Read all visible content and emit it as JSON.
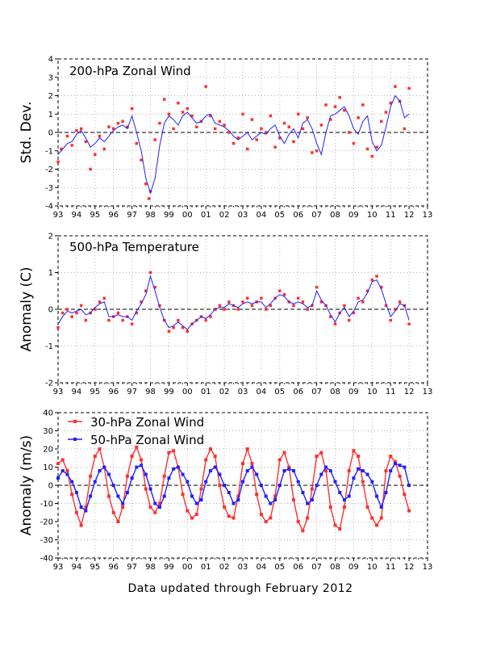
{
  "footer": "Data updated through February 2012",
  "x_tick_labels": [
    "93",
    "94",
    "95",
    "96",
    "97",
    "98",
    "99",
    "00",
    "01",
    "02",
    "03",
    "04",
    "05",
    "06",
    "07",
    "08",
    "09",
    "10",
    "11",
    "12",
    "13"
  ],
  "colors": {
    "obs": "#ff3030",
    "smooth": "#2020ff",
    "axis": "#000000"
  },
  "chart_data": [
    {
      "type": "scatter",
      "title": "200-hPa Zonal Wind",
      "ylabel": "Std. Dev.",
      "xlim": [
        1993,
        2013
      ],
      "ylim": [
        -4,
        4
      ],
      "yticks": [
        -4,
        -3,
        -2,
        -1,
        0,
        1,
        2,
        3,
        4
      ],
      "grid": true,
      "series": [
        {
          "role": "monthly points (red squares)",
          "color": "#ff3030",
          "x": [
            1993.0,
            1993.17,
            1993.5,
            1993.75,
            1994.0,
            1994.25,
            1994.5,
            1994.75,
            1995.0,
            1995.25,
            1995.5,
            1995.75,
            1996.0,
            1996.25,
            1996.5,
            1996.75,
            1997.0,
            1997.25,
            1997.5,
            1997.75,
            1997.92,
            1998.0,
            1998.25,
            1998.5,
            1998.75,
            1999.0,
            1999.25,
            1999.5,
            1999.75,
            2000.0,
            2000.25,
            2000.5,
            2000.75,
            2001.0,
            2001.25,
            2001.5,
            2001.75,
            2002.0,
            2002.25,
            2002.5,
            2002.75,
            2003.0,
            2003.25,
            2003.5,
            2003.75,
            2004.0,
            2004.25,
            2004.5,
            2004.75,
            2005.0,
            2005.25,
            2005.5,
            2005.75,
            2006.0,
            2006.25,
            2006.5,
            2006.75,
            2007.0,
            2007.25,
            2007.5,
            2007.75,
            2008.0,
            2008.25,
            2008.5,
            2008.75,
            2009.0,
            2009.25,
            2009.5,
            2009.75,
            2010.0,
            2010.25,
            2010.5,
            2010.75,
            2011.0,
            2011.25,
            2011.5,
            2011.75,
            2012.0
          ],
          "y": [
            -1.6,
            -0.9,
            -0.2,
            -0.7,
            0.1,
            0.2,
            -0.5,
            -2.0,
            -1.2,
            -0.2,
            -0.9,
            0.3,
            0.2,
            0.5,
            0.6,
            0.3,
            1.3,
            -0.6,
            -1.5,
            -2.8,
            -3.6,
            -3.2,
            -0.4,
            0.5,
            1.8,
            1.0,
            0.2,
            1.6,
            1.1,
            1.3,
            0.9,
            0.3,
            0.6,
            2.5,
            0.9,
            0.2,
            0.6,
            0.4,
            0.0,
            -0.6,
            -0.3,
            1.0,
            -0.9,
            0.7,
            -0.4,
            0.2,
            0.0,
            0.9,
            -0.8,
            -0.3,
            0.5,
            0.3,
            -0.5,
            1.0,
            0.2,
            0.8,
            -1.1,
            -1.0,
            0.4,
            1.5,
            0.7,
            1.4,
            1.9,
            1.2,
            0.0,
            -0.6,
            0.8,
            1.5,
            -0.9,
            -1.3,
            -0.8,
            0.6,
            1.1,
            1.6,
            2.5,
            1.7,
            0.2,
            2.4
          ]
        },
        {
          "role": "smoothed (blue line)",
          "color": "#2020ff",
          "x": [
            1993.0,
            1993.25,
            1993.5,
            1993.75,
            1994.0,
            1994.25,
            1994.5,
            1994.75,
            1995.0,
            1995.25,
            1995.5,
            1995.75,
            1996.0,
            1996.25,
            1996.5,
            1996.75,
            1997.0,
            1997.25,
            1997.5,
            1997.75,
            1998.0,
            1998.25,
            1998.5,
            1998.75,
            1999.0,
            1999.25,
            1999.5,
            1999.75,
            2000.0,
            2000.25,
            2000.5,
            2000.75,
            2001.0,
            2001.25,
            2001.5,
            2001.75,
            2002.0,
            2002.25,
            2002.5,
            2002.75,
            2003.0,
            2003.25,
            2003.5,
            2003.75,
            2004.0,
            2004.25,
            2004.5,
            2004.75,
            2005.0,
            2005.25,
            2005.5,
            2005.75,
            2006.0,
            2006.25,
            2006.5,
            2006.75,
            2007.0,
            2007.25,
            2007.5,
            2007.75,
            2008.0,
            2008.25,
            2008.5,
            2008.75,
            2009.0,
            2009.25,
            2009.5,
            2009.75,
            2010.0,
            2010.25,
            2010.5,
            2010.75,
            2011.0,
            2011.25,
            2011.5,
            2011.75,
            2012.0
          ],
          "y": [
            -1.2,
            -0.9,
            -0.6,
            -0.5,
            -0.1,
            0.1,
            -0.3,
            -0.8,
            -0.6,
            -0.3,
            -0.5,
            -0.2,
            0.1,
            0.3,
            0.4,
            0.2,
            0.9,
            0.0,
            -1.0,
            -2.5,
            -3.3,
            -2.5,
            -0.7,
            0.5,
            0.9,
            0.7,
            0.4,
            0.9,
            1.1,
            0.8,
            0.5,
            0.6,
            0.9,
            1.0,
            0.5,
            0.4,
            0.3,
            0.1,
            -0.2,
            -0.4,
            -0.2,
            0.0,
            -0.4,
            -0.2,
            0.0,
            -0.1,
            0.2,
            0.4,
            -0.2,
            -0.6,
            -0.1,
            0.2,
            -0.3,
            0.5,
            0.7,
            0.2,
            -0.6,
            -1.2,
            0.0,
            0.9,
            1.0,
            1.2,
            1.4,
            0.9,
            0.2,
            -0.1,
            0.6,
            0.9,
            -0.5,
            -1.0,
            -0.7,
            0.3,
            1.4,
            2.0,
            1.7,
            0.8,
            1.0
          ]
        }
      ]
    },
    {
      "type": "scatter",
      "title": "500-hPa Temperature",
      "ylabel": "Anomaly (C)",
      "xlim": [
        1993,
        2013
      ],
      "ylim": [
        -2,
        2
      ],
      "yticks": [
        -2,
        -1,
        0,
        1,
        2
      ],
      "grid": true,
      "series": [
        {
          "role": "monthly points (red squares)",
          "color": "#ff3030",
          "x": [
            1993.0,
            1993.25,
            1993.5,
            1993.75,
            1994.0,
            1994.25,
            1994.5,
            1994.75,
            1995.0,
            1995.25,
            1995.5,
            1995.75,
            1996.0,
            1996.25,
            1996.5,
            1996.75,
            1997.0,
            1997.25,
            1997.5,
            1997.75,
            1998.0,
            1998.25,
            1998.5,
            1998.75,
            1999.0,
            1999.25,
            1999.5,
            1999.75,
            2000.0,
            2000.25,
            2000.5,
            2000.75,
            2001.0,
            2001.25,
            2001.5,
            2001.75,
            2002.0,
            2002.25,
            2002.5,
            2002.75,
            2003.0,
            2003.25,
            2003.5,
            2003.75,
            2004.0,
            2004.25,
            2004.5,
            2004.75,
            2005.0,
            2005.25,
            2005.5,
            2005.75,
            2006.0,
            2006.25,
            2006.5,
            2006.75,
            2007.0,
            2007.25,
            2007.5,
            2007.75,
            2008.0,
            2008.25,
            2008.5,
            2008.75,
            2009.0,
            2009.25,
            2009.5,
            2009.75,
            2010.0,
            2010.25,
            2010.5,
            2010.75,
            2011.0,
            2011.25,
            2011.5,
            2011.75,
            2012.0
          ],
          "y": [
            -0.5,
            -0.1,
            0.0,
            -0.2,
            -0.1,
            0.1,
            -0.3,
            -0.1,
            0.0,
            0.2,
            0.3,
            -0.3,
            -0.2,
            -0.1,
            -0.3,
            -0.2,
            -0.4,
            -0.1,
            0.2,
            0.5,
            1.0,
            0.6,
            0.1,
            -0.3,
            -0.6,
            -0.5,
            -0.3,
            -0.5,
            -0.6,
            -0.4,
            -0.3,
            -0.2,
            -0.3,
            -0.2,
            0.0,
            0.1,
            0.0,
            0.2,
            0.1,
            0.0,
            0.2,
            0.3,
            0.1,
            0.2,
            0.3,
            0.0,
            0.1,
            0.3,
            0.5,
            0.4,
            0.2,
            0.1,
            0.3,
            0.2,
            0.0,
            0.1,
            0.6,
            0.2,
            0.1,
            -0.2,
            -0.4,
            -0.1,
            0.1,
            -0.3,
            -0.1,
            0.3,
            0.2,
            0.5,
            0.8,
            0.9,
            0.6,
            0.1,
            -0.3,
            0.0,
            0.2,
            0.1,
            -0.4
          ]
        },
        {
          "role": "smoothed (blue line)",
          "color": "#2020ff",
          "x": [
            1993.0,
            1993.25,
            1993.5,
            1993.75,
            1994.0,
            1994.25,
            1994.5,
            1994.75,
            1995.0,
            1995.25,
            1995.5,
            1995.75,
            1996.0,
            1996.25,
            1996.5,
            1996.75,
            1997.0,
            1997.25,
            1997.5,
            1997.75,
            1998.0,
            1998.25,
            1998.5,
            1998.75,
            1999.0,
            1999.25,
            1999.5,
            1999.75,
            2000.0,
            2000.25,
            2000.5,
            2000.75,
            2001.0,
            2001.25,
            2001.5,
            2001.75,
            2002.0,
            2002.25,
            2002.5,
            2002.75,
            2003.0,
            2003.25,
            2003.5,
            2003.75,
            2004.0,
            2004.25,
            2004.5,
            2004.75,
            2005.0,
            2005.25,
            2005.5,
            2005.75,
            2006.0,
            2006.25,
            2006.5,
            2006.75,
            2007.0,
            2007.25,
            2007.5,
            2007.75,
            2008.0,
            2008.25,
            2008.5,
            2008.75,
            2009.0,
            2009.25,
            2009.5,
            2009.75,
            2010.0,
            2010.25,
            2010.5,
            2010.75,
            2011.0,
            2011.25,
            2011.5,
            2011.75,
            2012.0
          ],
          "y": [
            -0.4,
            -0.2,
            -0.05,
            -0.1,
            -0.05,
            0.0,
            -0.15,
            -0.1,
            0.05,
            0.15,
            0.2,
            -0.2,
            -0.2,
            -0.15,
            -0.2,
            -0.2,
            -0.3,
            -0.05,
            0.15,
            0.4,
            0.9,
            0.5,
            0.05,
            -0.3,
            -0.5,
            -0.45,
            -0.35,
            -0.45,
            -0.55,
            -0.4,
            -0.3,
            -0.2,
            -0.25,
            -0.15,
            0.0,
            0.05,
            0.05,
            0.15,
            0.1,
            0.05,
            0.15,
            0.2,
            0.15,
            0.2,
            0.2,
            0.05,
            0.15,
            0.3,
            0.4,
            0.35,
            0.2,
            0.15,
            0.2,
            0.15,
            0.05,
            0.1,
            0.5,
            0.25,
            0.1,
            -0.15,
            -0.35,
            -0.1,
            0.05,
            -0.2,
            -0.05,
            0.2,
            0.25,
            0.45,
            0.75,
            0.8,
            0.55,
            0.15,
            -0.2,
            -0.05,
            0.15,
            0.1,
            -0.3
          ]
        }
      ]
    },
    {
      "type": "line",
      "ylabel": "Anomaly (m/s)",
      "xlim": [
        1993,
        2013
      ],
      "ylim": [
        -40,
        40
      ],
      "yticks": [
        -40,
        -30,
        -20,
        -10,
        0,
        10,
        20,
        30,
        40
      ],
      "grid": true,
      "legend": "top-left",
      "series": [
        {
          "name": "30-hPa Zonal Wind",
          "color": "#ff3030",
          "x": [
            1993.0,
            1993.25,
            1993.5,
            1993.75,
            1994.0,
            1994.25,
            1994.5,
            1994.75,
            1995.0,
            1995.25,
            1995.5,
            1995.75,
            1996.0,
            1996.25,
            1996.5,
            1996.75,
            1997.0,
            1997.25,
            1997.5,
            1997.75,
            1998.0,
            1998.25,
            1998.5,
            1998.75,
            1999.0,
            1999.25,
            1999.5,
            1999.75,
            2000.0,
            2000.25,
            2000.5,
            2000.75,
            2001.0,
            2001.25,
            2001.5,
            2001.75,
            2002.0,
            2002.25,
            2002.5,
            2002.75,
            2003.0,
            2003.25,
            2003.5,
            2003.75,
            2004.0,
            2004.25,
            2004.5,
            2004.75,
            2005.0,
            2005.25,
            2005.5,
            2005.75,
            2006.0,
            2006.25,
            2006.5,
            2006.75,
            2007.0,
            2007.25,
            2007.5,
            2007.75,
            2008.0,
            2008.25,
            2008.5,
            2008.75,
            2009.0,
            2009.25,
            2009.5,
            2009.75,
            2010.0,
            2010.25,
            2010.5,
            2010.75,
            2011.0,
            2011.25,
            2011.5,
            2011.75,
            2012.0
          ],
          "y": [
            12,
            14,
            8,
            -5,
            -15,
            -22,
            -12,
            5,
            16,
            20,
            10,
            -6,
            -15,
            -20,
            -12,
            5,
            16,
            21,
            14,
            -2,
            -12,
            -15,
            -10,
            5,
            18,
            19,
            10,
            -5,
            -14,
            -18,
            -16,
            -2,
            14,
            20,
            16,
            0,
            -12,
            -17,
            -18,
            -6,
            12,
            20,
            12,
            -5,
            -16,
            -20,
            -18,
            -6,
            14,
            18,
            10,
            -8,
            -20,
            -25,
            -18,
            -2,
            16,
            18,
            8,
            -12,
            -22,
            -24,
            -12,
            8,
            19,
            16,
            2,
            -12,
            -18,
            -22,
            -18,
            8,
            16,
            13,
            5,
            -5,
            -14
          ]
        },
        {
          "name": "50-hPa Zonal Wind",
          "color": "#2020ff",
          "x": [
            1993.0,
            1993.25,
            1993.5,
            1993.75,
            1994.0,
            1994.25,
            1994.5,
            1994.75,
            1995.0,
            1995.25,
            1995.5,
            1995.75,
            1996.0,
            1996.25,
            1996.5,
            1996.75,
            1997.0,
            1997.25,
            1997.5,
            1997.75,
            1998.0,
            1998.25,
            1998.5,
            1998.75,
            1999.0,
            1999.25,
            1999.5,
            1999.75,
            2000.0,
            2000.25,
            2000.5,
            2000.75,
            2001.0,
            2001.25,
            2001.5,
            2001.75,
            2002.0,
            2002.25,
            2002.5,
            2002.75,
            2003.0,
            2003.25,
            2003.5,
            2003.75,
            2004.0,
            2004.25,
            2004.5,
            2004.75,
            2005.0,
            2005.25,
            2005.5,
            2005.75,
            2006.0,
            2006.25,
            2006.5,
            2006.75,
            2007.0,
            2007.25,
            2007.5,
            2007.75,
            2008.0,
            2008.25,
            2008.5,
            2008.75,
            2009.0,
            2009.25,
            2009.5,
            2009.75,
            2010.0,
            2010.25,
            2010.5,
            2010.75,
            2011.0,
            2011.25,
            2011.5,
            2011.75,
            2012.0
          ],
          "y": [
            4,
            8,
            6,
            2,
            -4,
            -12,
            -14,
            -6,
            2,
            8,
            10,
            6,
            0,
            -6,
            -10,
            -4,
            4,
            10,
            11,
            6,
            -2,
            -10,
            -12,
            -6,
            4,
            9,
            10,
            6,
            2,
            -6,
            -10,
            -8,
            2,
            8,
            10,
            6,
            0,
            -4,
            -10,
            -8,
            2,
            8,
            10,
            6,
            0,
            -6,
            -10,
            -8,
            0,
            8,
            9,
            8,
            2,
            -4,
            -10,
            -8,
            0,
            6,
            10,
            8,
            2,
            -4,
            -8,
            -6,
            4,
            9,
            8,
            6,
            2,
            -6,
            -12,
            -4,
            8,
            12,
            11,
            10,
            0
          ]
        }
      ]
    }
  ]
}
